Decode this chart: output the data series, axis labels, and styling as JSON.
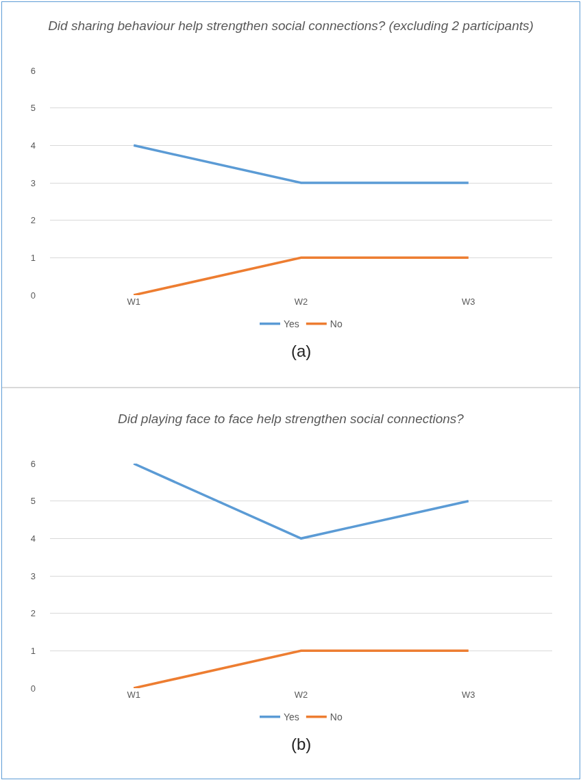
{
  "chart_data": [
    {
      "type": "line",
      "title": "Did sharing behaviour help strengthen social connections? (excluding 2 participants)",
      "categories": [
        "W1",
        "W2",
        "W3"
      ],
      "series": [
        {
          "name": "Yes",
          "color": "#5b9bd5",
          "values": [
            4,
            3,
            3
          ]
        },
        {
          "name": "No",
          "color": "#ed7d31",
          "values": [
            0,
            1,
            1
          ]
        }
      ],
      "ylim": [
        0,
        6
      ],
      "yticks": [
        0,
        1,
        2,
        3,
        4,
        5,
        6
      ],
      "grid": "y",
      "legend": "bottom",
      "marker": "none",
      "line_style": "solid",
      "annotations": [
        "(a)"
      ]
    },
    {
      "type": "line",
      "title": "Did playing face to face help strengthen social connections?",
      "categories": [
        "W1",
        "W2",
        "W3"
      ],
      "series": [
        {
          "name": "Yes",
          "color": "#5b9bd5",
          "values": [
            6,
            4,
            5
          ]
        },
        {
          "name": "No",
          "color": "#ed7d31",
          "values": [
            0,
            1,
            1
          ]
        }
      ],
      "ylim": [
        0,
        6
      ],
      "yticks": [
        0,
        1,
        2,
        3,
        4,
        5,
        6
      ],
      "grid": "y",
      "legend": "bottom",
      "marker": "none",
      "line_style": "solid",
      "annotations": [
        "(b)"
      ]
    }
  ]
}
